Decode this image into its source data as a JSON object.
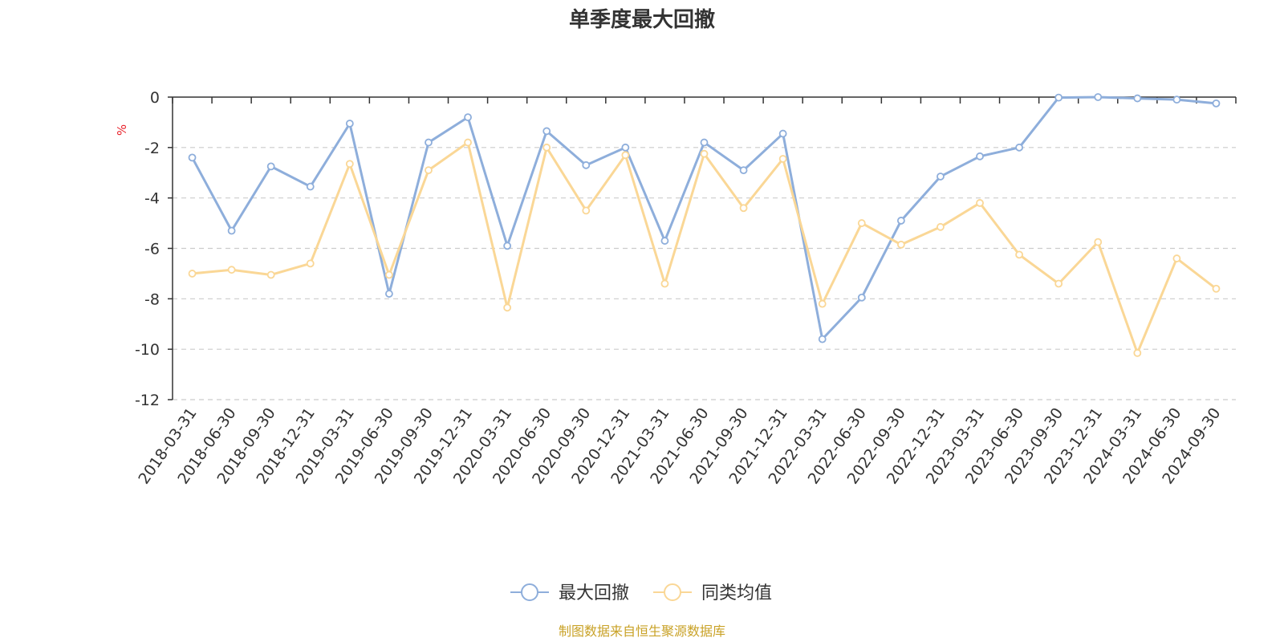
{
  "chart_data": {
    "type": "line",
    "title": "单季度最大回撤",
    "ylabel": "%",
    "xlabel": "",
    "ylim": [
      -12,
      0
    ],
    "yticks": [
      0,
      -2,
      -4,
      -6,
      -8,
      -10,
      -12
    ],
    "grid": true,
    "legend_position": "bottom-center",
    "categories": [
      "2018-03-31",
      "2018-06-30",
      "2018-09-30",
      "2018-12-31",
      "2019-03-31",
      "2019-06-30",
      "2019-09-30",
      "2019-12-31",
      "2020-03-31",
      "2020-06-30",
      "2020-09-30",
      "2020-12-31",
      "2021-03-31",
      "2021-06-30",
      "2021-09-30",
      "2021-12-31",
      "2022-03-31",
      "2022-06-30",
      "2022-09-30",
      "2022-12-31",
      "2023-03-31",
      "2023-06-30",
      "2023-09-30",
      "2023-12-31",
      "2024-03-31",
      "2024-06-30",
      "2024-09-30"
    ],
    "series": [
      {
        "name": "最大回撤",
        "color": "#8eaedb",
        "values": [
          -2.4,
          -5.3,
          -2.75,
          -3.55,
          -1.05,
          -7.8,
          -1.8,
          -0.8,
          -5.9,
          -1.35,
          -2.7,
          -2.0,
          -5.7,
          -1.8,
          -2.9,
          -1.45,
          -9.6,
          -7.95,
          -4.9,
          -3.15,
          -2.35,
          -2.0,
          -0.02,
          0.0,
          -0.05,
          -0.1,
          -0.25
        ]
      },
      {
        "name": "同类均值",
        "color": "#fad796",
        "values": [
          -7.0,
          -6.85,
          -7.05,
          -6.6,
          -2.65,
          -7.05,
          -2.9,
          -1.8,
          -8.35,
          -2.0,
          -4.5,
          -2.3,
          -7.4,
          -2.25,
          -4.4,
          -2.45,
          -8.2,
          -5.0,
          -5.85,
          -5.15,
          -4.2,
          -6.25,
          -7.4,
          -5.75,
          -10.15,
          -6.4,
          -7.6
        ]
      }
    ],
    "source_note": "制图数据来自恒生聚源数据库",
    "colors": {
      "axis": "#333333",
      "grid": "#cccccc",
      "unit": "#e8212a",
      "source": "#c9a227"
    }
  }
}
